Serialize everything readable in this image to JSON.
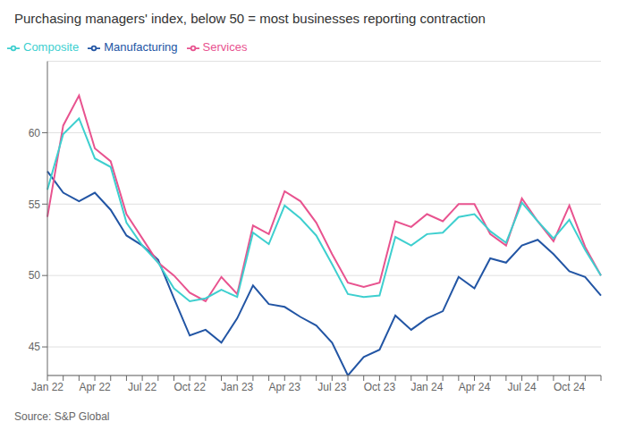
{
  "chart_data": {
    "type": "line",
    "title": "Purchasing managers' index, below 50 = most businesses reporting contraction",
    "source": "Source: S&P Global",
    "categories": [
      "Jan 22",
      null,
      null,
      "Apr 22",
      null,
      null,
      "Jul 22",
      null,
      null,
      "Oct 22",
      null,
      null,
      "Jan 23",
      null,
      null,
      "Apr 23",
      null,
      null,
      "Jul 23",
      null,
      null,
      "Oct 23",
      null,
      null,
      "Jan 24",
      null,
      null,
      "Apr 24",
      null,
      null,
      "Jul 24",
      null,
      null,
      "Oct 24",
      null,
      null
    ],
    "series": [
      {
        "name": "Manufacturing",
        "color": "#2255a4",
        "values": [
          57.3,
          55.8,
          55.2,
          55.8,
          54.6,
          52.8,
          52.1,
          51.1,
          48.4,
          45.8,
          46.2,
          45.3,
          47.0,
          49.3,
          48.0,
          47.8,
          47.1,
          46.5,
          45.3,
          43.0,
          44.3,
          44.8,
          47.2,
          46.2,
          47.0,
          47.5,
          49.9,
          49.1,
          51.2,
          50.9,
          52.1,
          52.5,
          51.5,
          50.3,
          49.9,
          48.6
        ]
      },
      {
        "name": "Services",
        "color": "#e8538f",
        "values": [
          54.1,
          60.5,
          62.6,
          58.9,
          58.0,
          54.3,
          52.6,
          50.9,
          50.0,
          48.8,
          48.2,
          49.9,
          48.7,
          53.5,
          52.9,
          55.9,
          55.2,
          53.7,
          51.5,
          49.5,
          49.2,
          49.5,
          53.8,
          53.4,
          54.3,
          53.8,
          55.0,
          55.0,
          52.9,
          52.1,
          55.4,
          53.8,
          52.4,
          54.9,
          52.0,
          50.0
        ]
      },
      {
        "name": "Composite",
        "color": "#3ecfcf",
        "values": [
          56.0,
          59.9,
          61.0,
          58.2,
          57.6,
          53.7,
          52.1,
          50.9,
          49.1,
          48.2,
          48.4,
          49.0,
          48.5,
          53.0,
          52.2,
          54.9,
          54.0,
          52.8,
          50.8,
          48.7,
          48.5,
          48.6,
          52.7,
          52.1,
          52.9,
          53.0,
          54.1,
          54.3,
          53.1,
          52.3,
          55.1,
          53.8,
          52.6,
          53.9,
          51.8,
          50.0
        ]
      }
    ],
    "ylim": [
      43,
      65
    ],
    "yticks": [
      45,
      50,
      55,
      60
    ],
    "grid": true,
    "legend": "upper left"
  }
}
